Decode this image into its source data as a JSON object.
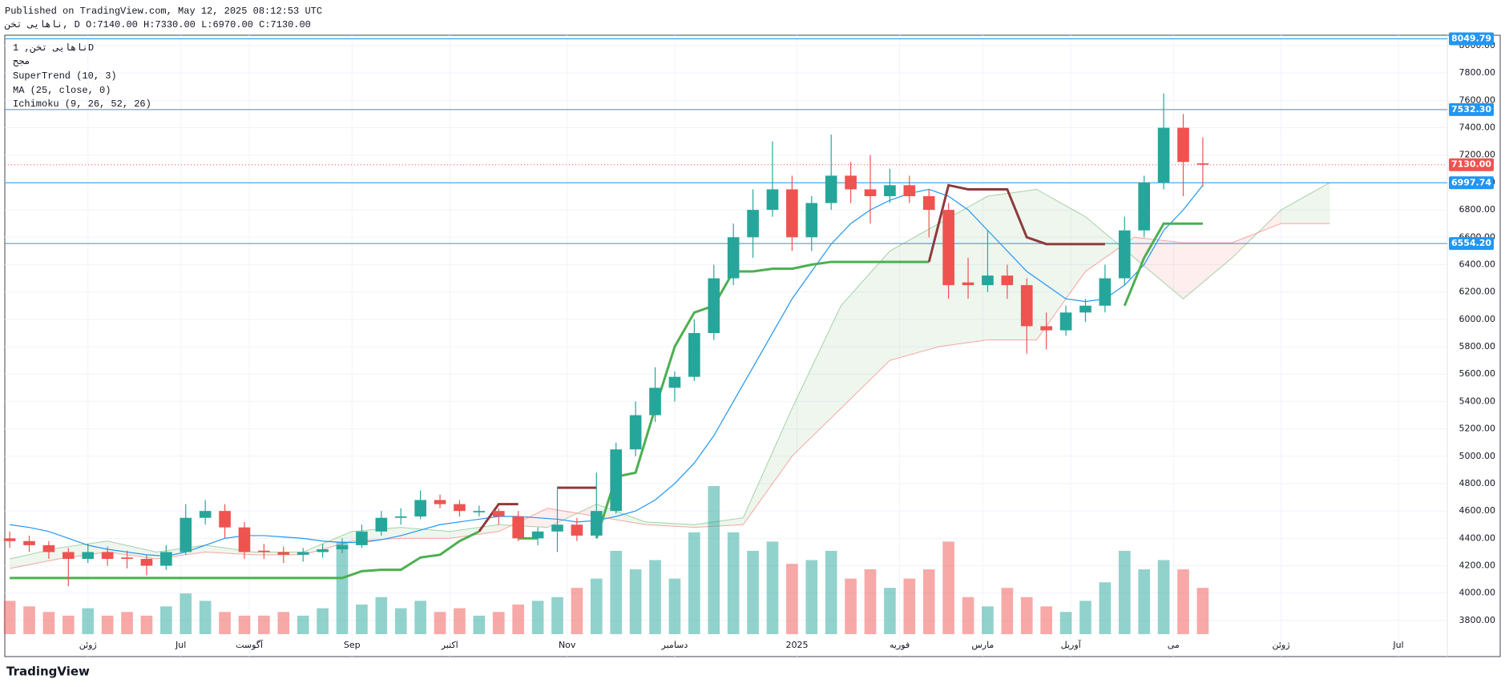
{
  "header": {
    "published": "Published on TradingView.com, May 12, 2025 08:12:53 UTC",
    "symbol_line": "ناهایی تخن, D O:7140.00 H:7330.00 L:6970.00 C:7130.00"
  },
  "legend": {
    "symbol": "ناهایی تخن, 1D",
    "exchange": "مجح"
  },
  "footer": {
    "logo": "TradingView"
  },
  "chart_data": {
    "type": "candlestick",
    "x": [
      0,
      4,
      8,
      12,
      16,
      20,
      24,
      28,
      32,
      36,
      40,
      44,
      48,
      52,
      56,
      60,
      64,
      68,
      72,
      76,
      80,
      84,
      88,
      92,
      96,
      100,
      104,
      108,
      112,
      116,
      120,
      124,
      128,
      132,
      136,
      140,
      144,
      148,
      152,
      156,
      160,
      164,
      168,
      172,
      176,
      180,
      184,
      188,
      192,
      196,
      200,
      204,
      208,
      212,
      216,
      220,
      224,
      228,
      232,
      236,
      240,
      244
    ],
    "ohlc": [
      [
        4400,
        4450,
        4330,
        4380
      ],
      [
        4380,
        4420,
        4300,
        4350
      ],
      [
        4350,
        4380,
        4250,
        4300
      ],
      [
        4300,
        4330,
        4050,
        4250
      ],
      [
        4250,
        4360,
        4220,
        4300
      ],
      [
        4300,
        4340,
        4200,
        4250
      ],
      [
        4260,
        4310,
        4180,
        4250
      ],
      [
        4250,
        4280,
        4130,
        4200
      ],
      [
        4200,
        4350,
        4170,
        4300
      ],
      [
        4300,
        4650,
        4280,
        4550
      ],
      [
        4550,
        4680,
        4500,
        4600
      ],
      [
        4600,
        4650,
        4400,
        4480
      ],
      [
        4480,
        4520,
        4250,
        4300
      ],
      [
        4310,
        4360,
        4250,
        4300
      ],
      [
        4300,
        4340,
        4220,
        4280
      ],
      [
        4280,
        4330,
        4230,
        4300
      ],
      [
        4300,
        4360,
        4260,
        4320
      ],
      [
        4320,
        4400,
        4290,
        4350
      ],
      [
        4350,
        4500,
        4330,
        4450
      ],
      [
        4450,
        4600,
        4420,
        4550
      ],
      [
        4550,
        4620,
        4500,
        4560
      ],
      [
        4560,
        4750,
        4540,
        4680
      ],
      [
        4680,
        4720,
        4620,
        4650
      ],
      [
        4650,
        4680,
        4560,
        4600
      ],
      [
        4590,
        4640,
        4560,
        4600
      ],
      [
        4600,
        4620,
        4500,
        4560
      ],
      [
        4560,
        4600,
        4380,
        4400
      ],
      [
        4400,
        4480,
        4350,
        4450
      ],
      [
        4450,
        4780,
        4300,
        4500
      ],
      [
        4500,
        4550,
        4380,
        4420
      ],
      [
        4420,
        4880,
        4400,
        4600
      ],
      [
        4600,
        5100,
        4580,
        5050
      ],
      [
        5050,
        5400,
        5000,
        5300
      ],
      [
        5300,
        5650,
        5250,
        5500
      ],
      [
        5500,
        5620,
        5400,
        5580
      ],
      [
        5580,
        6000,
        5550,
        5900
      ],
      [
        5900,
        6400,
        5850,
        6300
      ],
      [
        6300,
        6700,
        6250,
        6600
      ],
      [
        6600,
        6950,
        6450,
        6800
      ],
      [
        6800,
        7300,
        6750,
        6950
      ],
      [
        6950,
        7050,
        6500,
        6600
      ],
      [
        6600,
        6900,
        6500,
        6850
      ],
      [
        6850,
        7350,
        6800,
        7050
      ],
      [
        7050,
        7150,
        6850,
        6950
      ],
      [
        6950,
        7200,
        6700,
        6900
      ],
      [
        6900,
        7100,
        6850,
        6980
      ],
      [
        6980,
        7050,
        6850,
        6900
      ],
      [
        6900,
        6950,
        6600,
        6800
      ],
      [
        6800,
        6850,
        6150,
        6250
      ],
      [
        6270,
        6450,
        6150,
        6250
      ],
      [
        6250,
        6650,
        6200,
        6320
      ],
      [
        6320,
        6400,
        6150,
        6250
      ],
      [
        6250,
        6300,
        5750,
        5950
      ],
      [
        5950,
        6050,
        5780,
        5920
      ],
      [
        5920,
        6100,
        5880,
        6050
      ],
      [
        6050,
        6150,
        5980,
        6100
      ],
      [
        6100,
        6400,
        6050,
        6300
      ],
      [
        6300,
        6750,
        6250,
        6650
      ],
      [
        6650,
        7050,
        6600,
        7000
      ],
      [
        7000,
        7650,
        6950,
        7400
      ],
      [
        7400,
        7500,
        6900,
        7150
      ],
      [
        7140,
        7330,
        6970,
        7130
      ]
    ],
    "volume": [
      18,
      15,
      12,
      10,
      14,
      10,
      12,
      10,
      15,
      22,
      18,
      12,
      10,
      10,
      12,
      10,
      14,
      50,
      16,
      20,
      14,
      18,
      12,
      14,
      10,
      12,
      16,
      18,
      20,
      25,
      30,
      45,
      35,
      40,
      30,
      55,
      80,
      55,
      45,
      50,
      38,
      40,
      45,
      30,
      35,
      25,
      30,
      35,
      50,
      20,
      15,
      25,
      20,
      15,
      12,
      18,
      28,
      45,
      35,
      40,
      35,
      25
    ],
    "up_color": "#26a69a",
    "down_color": "#ef5350",
    "ma": {
      "name": "MA (25, close, 0)",
      "color": "#2196f3",
      "values": [
        4500,
        4480,
        4450,
        4400,
        4350,
        4320,
        4300,
        4280,
        4270,
        4300,
        4350,
        4400,
        4420,
        4420,
        4410,
        4400,
        4380,
        4370,
        4370,
        4390,
        4420,
        4460,
        4500,
        4520,
        4540,
        4560,
        4560,
        4550,
        4540,
        4520,
        4530,
        4560,
        4600,
        4680,
        4800,
        4950,
        5150,
        5400,
        5650,
        5900,
        6150,
        6350,
        6550,
        6700,
        6800,
        6870,
        6920,
        6950,
        6900,
        6800,
        6650,
        6500,
        6350,
        6250,
        6150,
        6130,
        6150,
        6250,
        6400,
        6650,
        6800,
        6980
      ]
    },
    "supertrend": {
      "name": "SuperTrend (10, 3)",
      "up_color": "#4caf50",
      "down_color": "#8d3b3b",
      "up_values": [
        4110,
        4110,
        4110,
        4110,
        4110,
        4110,
        4110,
        4110,
        4110,
        4110,
        4110,
        4110,
        4110,
        4110,
        4110,
        4110,
        4110,
        4110,
        4160,
        4170,
        4170,
        4260,
        4280,
        4380,
        4450,
        null,
        4400,
        4400,
        null,
        null,
        4400,
        4850,
        4880,
        5350,
        5800,
        6050,
        6100,
        6350,
        6350,
        6370,
        6370,
        6400,
        6420,
        6420,
        6420,
        6420,
        6420,
        6420,
        null,
        null,
        null,
        null,
        null,
        null,
        null,
        null,
        null,
        6100,
        6450,
        6700,
        6700,
        6700
      ],
      "down_values": [
        null,
        null,
        null,
        null,
        null,
        null,
        null,
        null,
        null,
        null,
        null,
        null,
        null,
        null,
        null,
        null,
        null,
        null,
        null,
        null,
        null,
        null,
        null,
        null,
        4450,
        4650,
        4650,
        null,
        4770,
        4770,
        4770,
        null,
        null,
        null,
        null,
        null,
        null,
        null,
        null,
        null,
        null,
        null,
        null,
        null,
        null,
        null,
        null,
        6420,
        6980,
        6950,
        6950,
        6950,
        6600,
        6550,
        6550,
        6550,
        6550,
        null,
        null,
        null,
        null,
        null
      ]
    },
    "ichimoku": {
      "name": "Ichimoku (9, 26, 52, 26)",
      "a_color": "#43a047",
      "b_color": "#f44336",
      "x": [
        0,
        10,
        20,
        30,
        40,
        50,
        60,
        70,
        80,
        90,
        100,
        110,
        120,
        130,
        140,
        150,
        160,
        170,
        180,
        190,
        200,
        210,
        220,
        230,
        240,
        250,
        260,
        270
      ],
      "span_a": [
        4250,
        4330,
        4380,
        4300,
        4350,
        4300,
        4300,
        4450,
        4480,
        4450,
        4500,
        4480,
        4650,
        4520,
        4500,
        4550,
        5350,
        6100,
        6500,
        6700,
        6900,
        6950,
        6750,
        6450,
        6150,
        6450,
        6800,
        7000
      ],
      "span_b": [
        4180,
        4250,
        4300,
        4250,
        4300,
        4280,
        4280,
        4380,
        4400,
        4400,
        4450,
        4620,
        4560,
        4500,
        4480,
        4500,
        5000,
        5350,
        5700,
        5800,
        5850,
        5850,
        6350,
        6600,
        6560,
        6560,
        6700,
        6700
      ]
    },
    "levels": [
      {
        "value": 8049.79,
        "label": "8049.79"
      },
      {
        "value": 7532.3,
        "label": "7532.30"
      },
      {
        "value": 6997.74,
        "label": "6997.74"
      },
      {
        "value": 6554.2,
        "label": "6554.20"
      }
    ],
    "level_color": "#2196f3",
    "last_price": {
      "value": 7130,
      "label": "7130.00"
    },
    "ylim": [
      3700,
      8076
    ],
    "yticks": [
      {
        "value": 3800,
        "label": "3800.00"
      },
      {
        "value": 4000,
        "label": "4000.00"
      },
      {
        "value": 4200,
        "label": "4200.00"
      },
      {
        "value": 4400,
        "label": "4400.00"
      },
      {
        "value": 4600,
        "label": "4600.00"
      },
      {
        "value": 4800,
        "label": "4800.00"
      },
      {
        "value": 5000,
        "label": "5000.00"
      },
      {
        "value": 5200,
        "label": "5200.00"
      },
      {
        "value": 5400,
        "label": "5400.00"
      },
      {
        "value": 5600,
        "label": "5600.00"
      },
      {
        "value": 5800,
        "label": "5800.00"
      },
      {
        "value": 6000,
        "label": "6000.00"
      },
      {
        "value": 6200,
        "label": "6200.00"
      },
      {
        "value": 6400,
        "label": "6400.00"
      },
      {
        "value": 6600,
        "label": "6600.00"
      },
      {
        "value": 6800,
        "label": "6800.00"
      },
      {
        "value": 7000,
        "label": "7000.00"
      },
      {
        "value": 7200,
        "label": "7200.00"
      },
      {
        "value": 7400,
        "label": "7400.00"
      },
      {
        "value": 7600,
        "label": "7600.00"
      },
      {
        "value": 7800,
        "label": "7800.00"
      },
      {
        "value": 8000,
        "label": "8000.00"
      }
    ],
    "xlim": [
      -1,
      294
    ],
    "xticks": [
      {
        "value": 16,
        "label": "ژوئن"
      },
      {
        "value": 35,
        "label": "Jul"
      },
      {
        "value": 49,
        "label": "آگوست"
      },
      {
        "value": 70,
        "label": "Sep"
      },
      {
        "value": 90,
        "label": "اکتبر"
      },
      {
        "value": 114,
        "label": "Nov"
      },
      {
        "value": 136,
        "label": "دسامبر"
      },
      {
        "value": 161,
        "label": "2025"
      },
      {
        "value": 182,
        "label": "فوریه"
      },
      {
        "value": 199,
        "label": "مارس"
      },
      {
        "value": 217,
        "label": "آوریل"
      },
      {
        "value": 238,
        "label": "می"
      },
      {
        "value": 260,
        "label": "ژوئن"
      },
      {
        "value": 284,
        "label": "Jul"
      }
    ],
    "grid": true
  }
}
